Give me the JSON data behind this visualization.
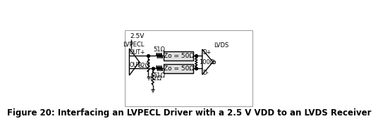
{
  "bg_color": "#ffffff",
  "line_color": "#000000",
  "figure_caption": "Figure 20: Interfacing an LVPECL Driver with a 2.5 V VDD to an LVDS Receiver",
  "caption_fontsize": 8.5,
  "vdd_label": "2.5V",
  "lvpecl_label": "LVPECL",
  "lvds_label": "LVDS",
  "out_plus_label": "OUT+",
  "out_minus_label": "OUT-",
  "d_plus_label": "D+",
  "d_minus_label": "D-",
  "r1_label": "51Ω",
  "r2_label": "51Ω",
  "r3_label": "82Ω",
  "r4_label": "82Ω",
  "r5_label": "100Ω",
  "tline_top_label": "Zo = 50Ω",
  "tline_bot_label": "Zo = 50Ω",
  "tline_fill": "#e0e0e0",
  "border_lw": 0.7
}
